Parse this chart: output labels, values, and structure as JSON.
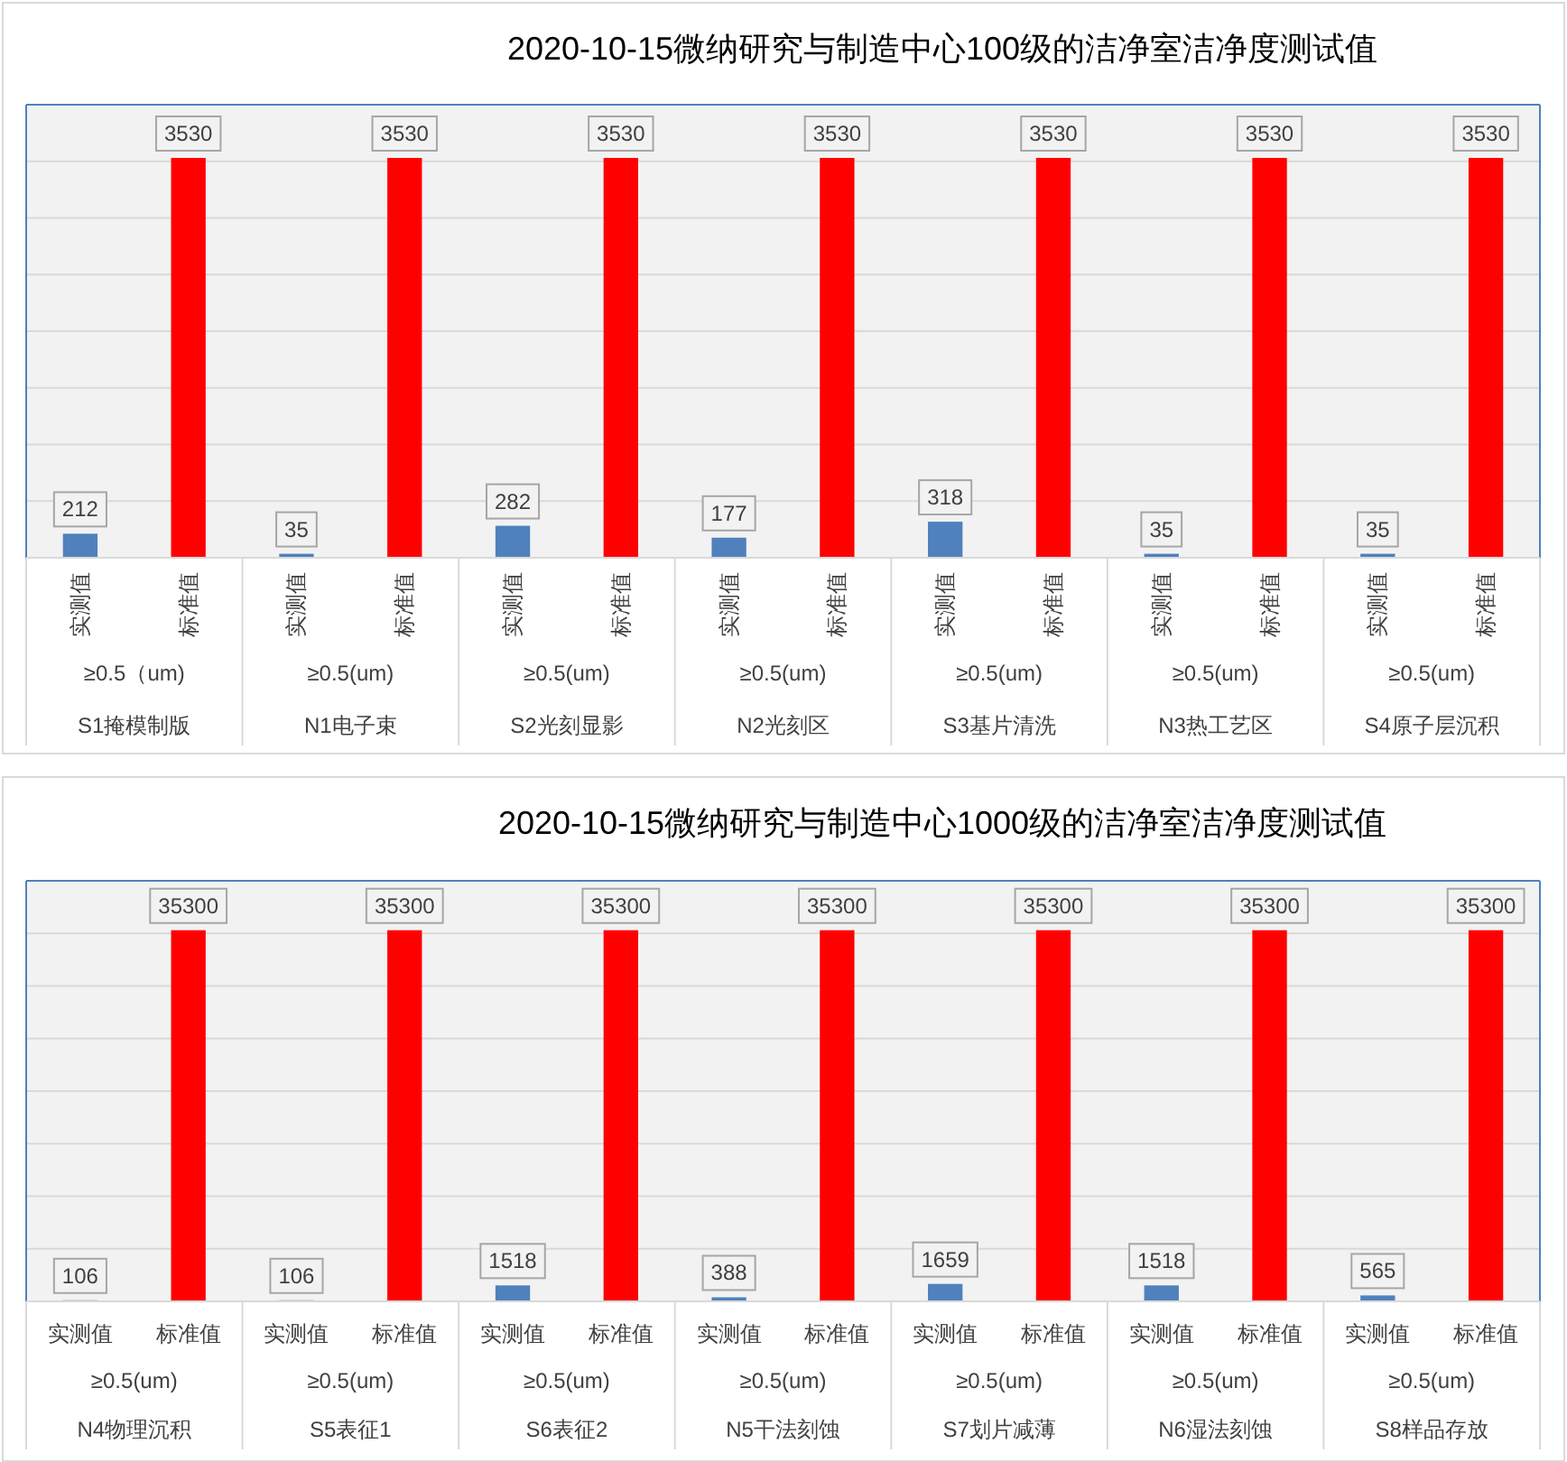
{
  "chart_data": [
    {
      "type": "bar",
      "title": "2020-10-15微纳研究与制造中心100级的洁净室洁净度测试值",
      "categories": [
        "S1掩模制版",
        "N1电子束",
        "S2光刻显影",
        "N2光刻区",
        "S3基片清洗",
        "N3热工艺区",
        "S4原子层沉积"
      ],
      "series": [
        {
          "name": "实测值",
          "color": "#4f81bd",
          "values": [
            212,
            35,
            282,
            177,
            318,
            35,
            35
          ]
        },
        {
          "name": "标准值",
          "color": "#ff0000",
          "values": [
            3530,
            3530,
            3530,
            3530,
            3530,
            3530,
            3530
          ]
        }
      ],
      "annotations": [
        "≥0.5（um)",
        "≥0.5(um)",
        "≥0.5(um)",
        "≥0.5(um)",
        "≥0.5(um)",
        "≥0.5(um)",
        "≥0.5(um)"
      ],
      "ylim": [
        0,
        4000
      ],
      "yticks": [
        {
          "value": 0,
          "label": null
        },
        {
          "value": 500,
          "label": null
        },
        {
          "value": 1000,
          "label": null
        },
        {
          "value": 1500,
          "label": null
        },
        {
          "value": 2000,
          "label": null
        },
        {
          "value": 2500,
          "label": null
        },
        {
          "value": 3000,
          "label": null
        },
        {
          "value": 3500,
          "label": null
        },
        {
          "value": 4000,
          "label": null
        }
      ],
      "grid": "y",
      "data_labels": true,
      "tick_labels": "x"
    },
    {
      "type": "bar",
      "title": "2020-10-15微纳研究与制造中心1000级的洁净室洁净度测试值",
      "categories": [
        "N4物理沉积",
        "S5表征1",
        "S6表征2",
        "N5干法刻蚀",
        "S7划片减薄",
        "N6湿法刻蚀",
        "S8样品存放"
      ],
      "series": [
        {
          "name": "实测值",
          "color": "#4f81bd",
          "values": [
            106,
            106,
            1518,
            388,
            1659,
            1518,
            565
          ]
        },
        {
          "name": "标准值",
          "color": "#ff0000",
          "values": [
            35300,
            35300,
            35300,
            35300,
            35300,
            35300,
            35300
          ]
        }
      ],
      "annotations": [
        "≥0.5(um)",
        "≥0.5(um)",
        "≥0.5(um)",
        "≥0.5(um)",
        "≥0.5(um)",
        "≥0.5(um)",
        "≥0.5(um)"
      ],
      "ylim": [
        0,
        40000
      ],
      "yticks": [
        {
          "value": 0,
          "label": null
        },
        {
          "value": 5000,
          "label": null
        },
        {
          "value": 10000,
          "label": null
        },
        {
          "value": 15000,
          "label": null
        },
        {
          "value": 20000,
          "label": null
        },
        {
          "value": 25000,
          "label": null
        },
        {
          "value": 30000,
          "label": null
        },
        {
          "value": 35000,
          "label": null
        },
        {
          "value": 40000,
          "label": null
        }
      ],
      "grid": "y",
      "data_labels": true,
      "tick_labels": "x"
    }
  ]
}
